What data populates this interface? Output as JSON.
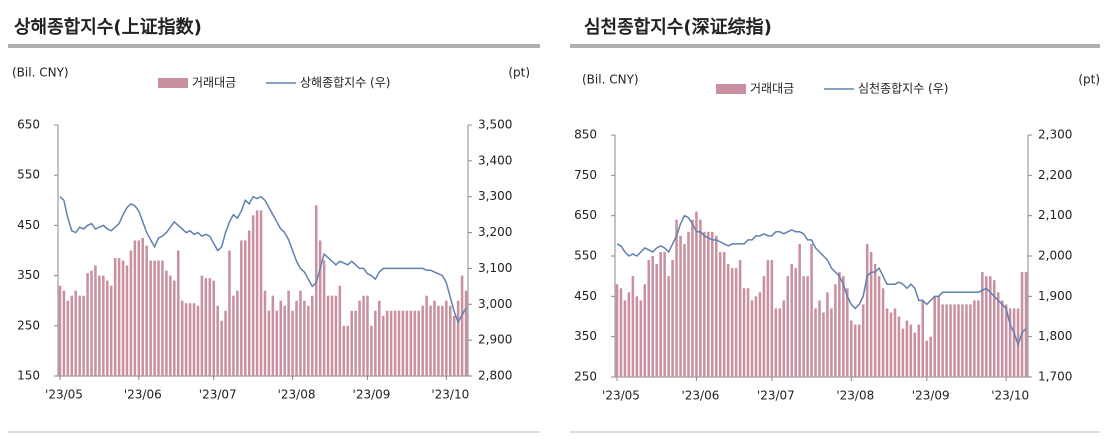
{
  "chart_data": [
    {
      "type": "combo",
      "title": "상해종합지수(上证指数)",
      "y_label": "(Bil. CNY)",
      "y2_label": "(pt)",
      "categories": [
        "'23/05",
        null,
        null,
        null,
        null,
        null,
        null,
        null,
        null,
        null,
        null,
        null,
        null,
        null,
        null,
        null,
        null,
        null,
        null,
        null,
        "'23/06",
        null,
        null,
        null,
        null,
        null,
        null,
        null,
        null,
        null,
        null,
        null,
        null,
        null,
        null,
        null,
        null,
        null,
        null,
        "'23/07",
        null,
        null,
        null,
        null,
        null,
        null,
        null,
        null,
        null,
        null,
        null,
        null,
        null,
        null,
        null,
        null,
        null,
        null,
        null,
        "'23/08",
        null,
        null,
        null,
        null,
        null,
        null,
        null,
        null,
        null,
        null,
        null,
        null,
        null,
        null,
        null,
        null,
        null,
        null,
        "'23/09",
        null,
        null,
        null,
        null,
        null,
        null,
        null,
        null,
        null,
        null,
        null,
        null,
        null,
        null,
        null,
        null,
        null,
        null,
        null,
        "'23/10",
        null,
        null,
        null,
        null,
        null
      ],
      "series": [
        {
          "name": "거래대금",
          "type": "bar",
          "color": "#c9909f",
          "values": [
            330,
            320,
            300,
            310,
            320,
            310,
            310,
            355,
            360,
            370,
            350,
            350,
            340,
            330,
            385,
            385,
            380,
            370,
            400,
            420,
            420,
            425,
            410,
            380,
            380,
            380,
            380,
            360,
            350,
            340,
            400,
            300,
            295,
            295,
            295,
            290,
            350,
            345,
            345,
            340,
            290,
            260,
            280,
            400,
            310,
            320,
            420,
            420,
            440,
            470,
            480,
            480,
            320,
            280,
            310,
            280,
            300,
            290,
            320,
            280,
            300,
            320,
            300,
            290,
            310,
            490,
            420,
            380,
            310,
            310,
            310,
            330,
            250,
            250,
            280,
            280,
            300,
            310,
            310,
            250,
            280,
            300,
            270,
            280,
            280,
            280,
            280,
            280,
            280,
            280,
            280,
            280,
            290,
            310,
            290,
            300,
            290,
            290,
            300,
            290,
            270,
            300,
            350,
            320
          ]
        },
        {
          "name": "상해종합지수 (우)",
          "type": "line",
          "axis": "y2",
          "color": "#6080b0",
          "values": [
            3300,
            3290,
            3240,
            3205,
            3200,
            3215,
            3210,
            3220,
            3225,
            3210,
            3215,
            3220,
            3210,
            3205,
            3215,
            3225,
            3250,
            3270,
            3280,
            3275,
            3260,
            3230,
            3200,
            3180,
            3160,
            3185,
            3190,
            3200,
            3215,
            3230,
            3220,
            3210,
            3200,
            3205,
            3195,
            3200,
            3190,
            3195,
            3190,
            3170,
            3150,
            3160,
            3200,
            3230,
            3250,
            3240,
            3260,
            3290,
            3280,
            3300,
            3295,
            3300,
            3290,
            3270,
            3250,
            3230,
            3210,
            3200,
            3180,
            3150,
            3120,
            3100,
            3090,
            3070,
            3050,
            3060,
            3100,
            3140,
            3130,
            3120,
            3110,
            3120,
            3115,
            3110,
            3120,
            3110,
            3100,
            3100,
            3085,
            3080,
            3070,
            3090,
            3100,
            3100,
            3100,
            3100,
            3100,
            3100,
            3100,
            3100,
            3100,
            3100,
            3100,
            3095,
            3095,
            3090,
            3085,
            3080,
            3060,
            3020,
            2980,
            2950,
            2970,
            2990
          ]
        }
      ],
      "ylim": [
        150,
        650
      ],
      "yticks": [
        150,
        250,
        350,
        450,
        550,
        650
      ],
      "y2lim": [
        2800,
        3500
      ],
      "y2ticks": [
        {
          "value": 2800,
          "label": "2,800"
        },
        {
          "value": 2900,
          "label": "2,900"
        },
        {
          "value": 3000,
          "label": "3,000"
        },
        {
          "value": 3100,
          "label": "3,100"
        },
        {
          "value": 3200,
          "label": "3,200"
        },
        {
          "value": 3300,
          "label": "3,300"
        },
        {
          "value": 3400,
          "label": "3,400"
        },
        {
          "value": 3500,
          "label": "3,500"
        }
      ],
      "legend": "top",
      "grid": false
    },
    {
      "type": "combo",
      "title": "심천종합지수(深证综指)",
      "y_label": "(Bil. CNY)",
      "y2_label": "(pt)",
      "categories": [
        "'23/05",
        null,
        null,
        null,
        null,
        null,
        null,
        null,
        null,
        null,
        null,
        null,
        null,
        null,
        null,
        null,
        null,
        null,
        null,
        null,
        "'23/06",
        null,
        null,
        null,
        null,
        null,
        null,
        null,
        null,
        null,
        null,
        null,
        null,
        null,
        null,
        null,
        null,
        null,
        null,
        "'23/07",
        null,
        null,
        null,
        null,
        null,
        null,
        null,
        null,
        null,
        null,
        null,
        null,
        null,
        null,
        null,
        null,
        null,
        null,
        null,
        "'23/08",
        null,
        null,
        null,
        null,
        null,
        null,
        null,
        null,
        null,
        null,
        null,
        null,
        null,
        null,
        null,
        null,
        null,
        null,
        "'23/09",
        null,
        null,
        null,
        null,
        null,
        null,
        null,
        null,
        null,
        null,
        null,
        null,
        null,
        null,
        null,
        null,
        null,
        null,
        null,
        "'23/10",
        null,
        null,
        null,
        null,
        null
      ],
      "series": [
        {
          "name": "거래대금",
          "type": "bar",
          "color": "#c9909f",
          "values": [
            480,
            470,
            440,
            460,
            500,
            450,
            440,
            480,
            540,
            550,
            530,
            560,
            560,
            500,
            540,
            640,
            600,
            580,
            610,
            640,
            660,
            640,
            610,
            610,
            610,
            600,
            560,
            560,
            530,
            520,
            520,
            540,
            470,
            470,
            440,
            450,
            460,
            500,
            540,
            540,
            420,
            420,
            440,
            500,
            530,
            520,
            580,
            500,
            500,
            580,
            420,
            440,
            410,
            460,
            420,
            480,
            510,
            500,
            470,
            390,
            380,
            380,
            430,
            580,
            560,
            530,
            500,
            470,
            420,
            410,
            420,
            400,
            370,
            390,
            380,
            360,
            380,
            440,
            340,
            350,
            450,
            450,
            430,
            430,
            430,
            430,
            430,
            430,
            430,
            430,
            440,
            440,
            510,
            500,
            500,
            490,
            460,
            440,
            430,
            420,
            420,
            420,
            510,
            510
          ]
        },
        {
          "name": "심천종합지수 (우)",
          "type": "line",
          "axis": "y2",
          "color": "#6080b0",
          "values": [
            2030,
            2025,
            2010,
            2000,
            2005,
            2000,
            2010,
            2020,
            2015,
            2010,
            2020,
            2025,
            2020,
            2010,
            2030,
            2050,
            2080,
            2100,
            2095,
            2080,
            2060,
            2060,
            2050,
            2045,
            2040,
            2040,
            2035,
            2030,
            2025,
            2030,
            2030,
            2030,
            2030,
            2040,
            2040,
            2050,
            2050,
            2055,
            2050,
            2050,
            2060,
            2060,
            2055,
            2060,
            2065,
            2060,
            2060,
            2055,
            2040,
            2040,
            2020,
            2010,
            2000,
            1990,
            1970,
            1960,
            1950,
            1930,
            1900,
            1880,
            1870,
            1880,
            1900,
            1950,
            1960,
            1960,
            1970,
            1950,
            1930,
            1930,
            1930,
            1935,
            1930,
            1920,
            1930,
            1920,
            1890,
            1890,
            1880,
            1890,
            1900,
            1900,
            1910,
            1910,
            1910,
            1910,
            1910,
            1910,
            1910,
            1910,
            1910,
            1910,
            1915,
            1920,
            1910,
            1900,
            1890,
            1880,
            1870,
            1830,
            1810,
            1780,
            1810,
            1820
          ]
        }
      ],
      "ylim": [
        250,
        850
      ],
      "yticks": [
        250,
        350,
        450,
        550,
        650,
        750,
        850
      ],
      "y2lim": [
        1700,
        2300
      ],
      "y2ticks": [
        {
          "value": 1700,
          "label": "1,700"
        },
        {
          "value": 1800,
          "label": "1,800"
        },
        {
          "value": 1900,
          "label": "1,900"
        },
        {
          "value": 2000,
          "label": "2,000"
        },
        {
          "value": 2100,
          "label": "2,100"
        },
        {
          "value": 2200,
          "label": "2,200"
        },
        {
          "value": 2300,
          "label": "2,300"
        }
      ],
      "legend": "top",
      "grid": false
    }
  ]
}
